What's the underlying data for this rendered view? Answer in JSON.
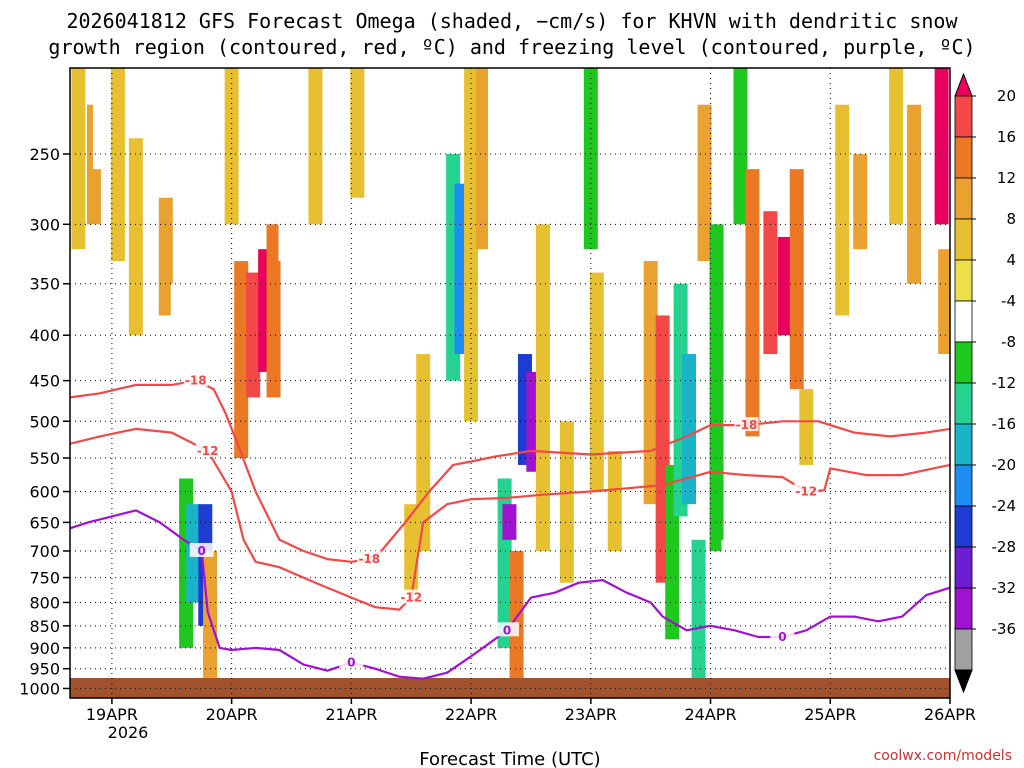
{
  "title_line1": "2026041812 GFS Forecast Omega (shaded, −cm/s) for KHVN with dendritic snow",
  "title_line2": "growth region (contoured, red, ºC) and freezing level (contoured, purple, ºC)",
  "x_axis_label": "Forecast Time (UTC)",
  "credit": "coolwx.com/models",
  "chart_data": {
    "type": "heatmap",
    "title": "2026041812 GFS Forecast Omega (shaded, −cm/s) for KHVN with dendritic snow growth region (contoured, red, ºC) and freezing level (contoured, purple, ºC)",
    "xlabel": "Forecast Time (UTC)",
    "ylabel": "Pressure (hPa)",
    "x_ticks": [
      "19APR",
      "20APR",
      "21APR",
      "22APR",
      "23APR",
      "24APR",
      "25APR",
      "26APR"
    ],
    "x_year_label": "2026",
    "xlim_days": [
      18.65,
      26.0
    ],
    "y_ticks": [
      250,
      300,
      350,
      400,
      450,
      500,
      550,
      600,
      650,
      700,
      750,
      800,
      850,
      900,
      950,
      1000
    ],
    "ylim": [
      1025,
      200
    ],
    "colorbar": {
      "ticks": [
        20,
        16,
        12,
        8,
        4,
        -4,
        -8,
        -12,
        -16,
        -20,
        -24,
        -28,
        -32,
        -36
      ],
      "colors": [
        "#e8005e",
        "#f24848",
        "#ea7824",
        "#e9a12f",
        "#e7c032",
        "#ebe04b",
        "#ffffff",
        "#1ec81e",
        "#25d28f",
        "#1ab4c8",
        "#1e8cf0",
        "#1e3cd2",
        "#6e1ed2",
        "#a012d2",
        "#a0a0a0",
        "#000000"
      ]
    },
    "omega_cells": [
      {
        "t": 18.72,
        "p0": 200,
        "p1": 320,
        "v": 6
      },
      {
        "t": 18.85,
        "p0": 220,
        "p1": 300,
        "v": 8
      },
      {
        "t": 18.9,
        "p0": 210,
        "p1": 260,
        "v": -8
      },
      {
        "t": 19.05,
        "p0": 200,
        "p1": 330,
        "v": 7
      },
      {
        "t": 19.2,
        "p0": 240,
        "p1": 400,
        "v": 6
      },
      {
        "t": 19.35,
        "p0": 200,
        "p1": 290,
        "v": -8
      },
      {
        "t": 19.45,
        "p0": 280,
        "p1": 380,
        "v": 10
      },
      {
        "t": 19.55,
        "p0": 350,
        "p1": 560,
        "v": -8
      },
      {
        "t": 19.62,
        "p0": 580,
        "p1": 900,
        "v": -10
      },
      {
        "t": 19.68,
        "p0": 620,
        "p1": 800,
        "v": -20
      },
      {
        "t": 19.78,
        "p0": 620,
        "p1": 850,
        "v": -28
      },
      {
        "t": 19.82,
        "p0": 700,
        "p1": 980,
        "v": 10
      },
      {
        "t": 19.9,
        "p0": 200,
        "p1": 320,
        "v": -8
      },
      {
        "t": 20.0,
        "p0": 200,
        "p1": 300,
        "v": 6
      },
      {
        "t": 20.08,
        "p0": 330,
        "p1": 550,
        "v": 14
      },
      {
        "t": 20.18,
        "p0": 340,
        "p1": 470,
        "v": 18
      },
      {
        "t": 20.28,
        "p0": 320,
        "p1": 440,
        "v": 20
      },
      {
        "t": 20.35,
        "p0": 300,
        "p1": 470,
        "v": 12
      },
      {
        "t": 20.45,
        "p0": 200,
        "p1": 330,
        "v": -8
      },
      {
        "t": 20.55,
        "p0": 550,
        "p1": 900,
        "v": -8
      },
      {
        "t": 20.7,
        "p0": 200,
        "p1": 300,
        "v": 6
      },
      {
        "t": 20.85,
        "p0": 770,
        "p1": 950,
        "v": -8
      },
      {
        "t": 21.05,
        "p0": 200,
        "p1": 280,
        "v": 6
      },
      {
        "t": 21.3,
        "p0": 750,
        "p1": 1000,
        "v": -8
      },
      {
        "t": 21.5,
        "p0": 620,
        "p1": 780,
        "v": 6
      },
      {
        "t": 21.6,
        "p0": 420,
        "p1": 700,
        "v": 6
      },
      {
        "t": 21.75,
        "p0": 230,
        "p1": 430,
        "v": -8
      },
      {
        "t": 21.85,
        "p0": 250,
        "p1": 450,
        "v": -16
      },
      {
        "t": 21.92,
        "p0": 270,
        "p1": 420,
        "v": -22
      },
      {
        "t": 22.0,
        "p0": 200,
        "p1": 500,
        "v": 6
      },
      {
        "t": 22.1,
        "p0": 200,
        "p1": 320,
        "v": 8
      },
      {
        "t": 22.2,
        "p0": 200,
        "p1": 520,
        "v": -8
      },
      {
        "t": 22.28,
        "p0": 580,
        "p1": 900,
        "v": -14
      },
      {
        "t": 22.32,
        "p0": 620,
        "p1": 680,
        "v": -36
      },
      {
        "t": 22.38,
        "p0": 700,
        "p1": 980,
        "v": 12
      },
      {
        "t": 22.45,
        "p0": 420,
        "p1": 560,
        "v": -28
      },
      {
        "t": 22.52,
        "p0": 440,
        "p1": 570,
        "v": -36
      },
      {
        "t": 22.6,
        "p0": 300,
        "p1": 700,
        "v": 6
      },
      {
        "t": 22.8,
        "p0": 500,
        "p1": 760,
        "v": 6
      },
      {
        "t": 23.0,
        "p0": 200,
        "p1": 320,
        "v": -10
      },
      {
        "t": 23.05,
        "p0": 340,
        "p1": 600,
        "v": 6
      },
      {
        "t": 23.2,
        "p0": 540,
        "p1": 700,
        "v": 6
      },
      {
        "t": 23.35,
        "p0": 760,
        "p1": 880,
        "v": -8
      },
      {
        "t": 23.5,
        "p0": 330,
        "p1": 620,
        "v": 8
      },
      {
        "t": 23.6,
        "p0": 380,
        "p1": 760,
        "v": 16
      },
      {
        "t": 23.68,
        "p0": 560,
        "p1": 880,
        "v": -12
      },
      {
        "t": 23.75,
        "p0": 350,
        "p1": 640,
        "v": -14
      },
      {
        "t": 23.82,
        "p0": 420,
        "p1": 620,
        "v": -20
      },
      {
        "t": 23.9,
        "p0": 680,
        "p1": 980,
        "v": -16
      },
      {
        "t": 23.95,
        "p0": 220,
        "p1": 330,
        "v": 10
      },
      {
        "t": 24.05,
        "p0": 300,
        "p1": 700,
        "v": -10
      },
      {
        "t": 24.15,
        "p0": 680,
        "p1": 900,
        "v": -8
      },
      {
        "t": 24.25,
        "p0": 200,
        "p1": 300,
        "v": -10
      },
      {
        "t": 24.35,
        "p0": 260,
        "p1": 520,
        "v": 12
      },
      {
        "t": 24.5,
        "p0": 290,
        "p1": 420,
        "v": 18
      },
      {
        "t": 24.62,
        "p0": 310,
        "p1": 400,
        "v": 20
      },
      {
        "t": 24.72,
        "p0": 260,
        "p1": 460,
        "v": 14
      },
      {
        "t": 24.8,
        "p0": 460,
        "p1": 560,
        "v": 6
      },
      {
        "t": 24.9,
        "p0": 720,
        "p1": 980,
        "v": -8
      },
      {
        "t": 25.0,
        "p0": 300,
        "p1": 480,
        "v": -8
      },
      {
        "t": 25.1,
        "p0": 220,
        "p1": 380,
        "v": 6
      },
      {
        "t": 25.25,
        "p0": 250,
        "p1": 320,
        "v": 10
      },
      {
        "t": 25.4,
        "p0": 600,
        "p1": 860,
        "v": -8
      },
      {
        "t": 25.55,
        "p0": 200,
        "p1": 300,
        "v": 6
      },
      {
        "t": 25.7,
        "p0": 220,
        "p1": 350,
        "v": 8
      },
      {
        "t": 25.8,
        "p0": 700,
        "p1": 950,
        "v": -8
      },
      {
        "t": 25.93,
        "p0": 200,
        "p1": 300,
        "v": 20
      },
      {
        "t": 25.96,
        "p0": 320,
        "p1": 420,
        "v": 10
      }
    ],
    "series": [
      {
        "name": "-18C isotherm",
        "color": "#f24848",
        "label": "-18",
        "t": [
          18.65,
          18.9,
          19.2,
          19.5,
          19.7,
          19.85,
          19.95,
          20.05,
          20.2,
          20.4,
          20.6,
          20.8,
          21.0,
          21.15,
          21.25,
          21.45,
          21.65,
          21.85,
          22.0,
          22.2,
          22.5,
          23.0,
          23.5,
          23.8,
          24.0,
          24.3,
          24.6,
          24.9,
          25.2,
          25.5,
          25.8,
          26.0
        ],
        "p": [
          470,
          465,
          455,
          455,
          450,
          460,
          490,
          530,
          600,
          680,
          700,
          715,
          720,
          715,
          700,
          650,
          600,
          560,
          555,
          548,
          540,
          545,
          540,
          520,
          505,
          505,
          500,
          500,
          515,
          520,
          515,
          510
        ]
      },
      {
        "name": "-12C isotherm",
        "color": "#f24848",
        "label": "-12",
        "t": [
          18.65,
          18.9,
          19.2,
          19.5,
          19.8,
          20.0,
          20.1,
          20.2,
          20.4,
          20.7,
          21.0,
          21.2,
          21.4,
          21.5,
          21.6,
          21.8,
          22.0,
          22.3,
          22.6,
          23.0,
          23.3,
          23.6,
          24.0,
          24.3,
          24.6,
          24.8,
          24.95,
          25.0,
          25.3,
          25.6,
          26.0
        ],
        "p": [
          530,
          520,
          510,
          515,
          540,
          600,
          680,
          720,
          730,
          760,
          790,
          810,
          815,
          790,
          650,
          620,
          612,
          610,
          605,
          600,
          595,
          590,
          570,
          575,
          578,
          600,
          598,
          565,
          575,
          575,
          560
        ]
      },
      {
        "name": "0C freezing level",
        "color": "#a012d2",
        "label": "0",
        "t": [
          18.65,
          18.8,
          19.0,
          19.2,
          19.4,
          19.6,
          19.75,
          19.8,
          19.9,
          20.0,
          20.2,
          20.4,
          20.6,
          20.8,
          21.0,
          21.2,
          21.4,
          21.6,
          21.8,
          22.0,
          22.2,
          22.3,
          22.5,
          22.7,
          22.9,
          23.1,
          23.3,
          23.5,
          23.6,
          23.8,
          24.0,
          24.2,
          24.4,
          24.6,
          24.8,
          25.0,
          25.2,
          25.4,
          25.6,
          25.8,
          26.0
        ],
        "p": [
          660,
          650,
          640,
          630,
          650,
          680,
          700,
          820,
          900,
          905,
          900,
          905,
          940,
          955,
          935,
          950,
          970,
          975,
          960,
          920,
          880,
          860,
          790,
          780,
          760,
          755,
          780,
          800,
          830,
          860,
          850,
          860,
          875,
          875,
          860,
          830,
          830,
          840,
          830,
          785,
          770
        ]
      }
    ]
  }
}
